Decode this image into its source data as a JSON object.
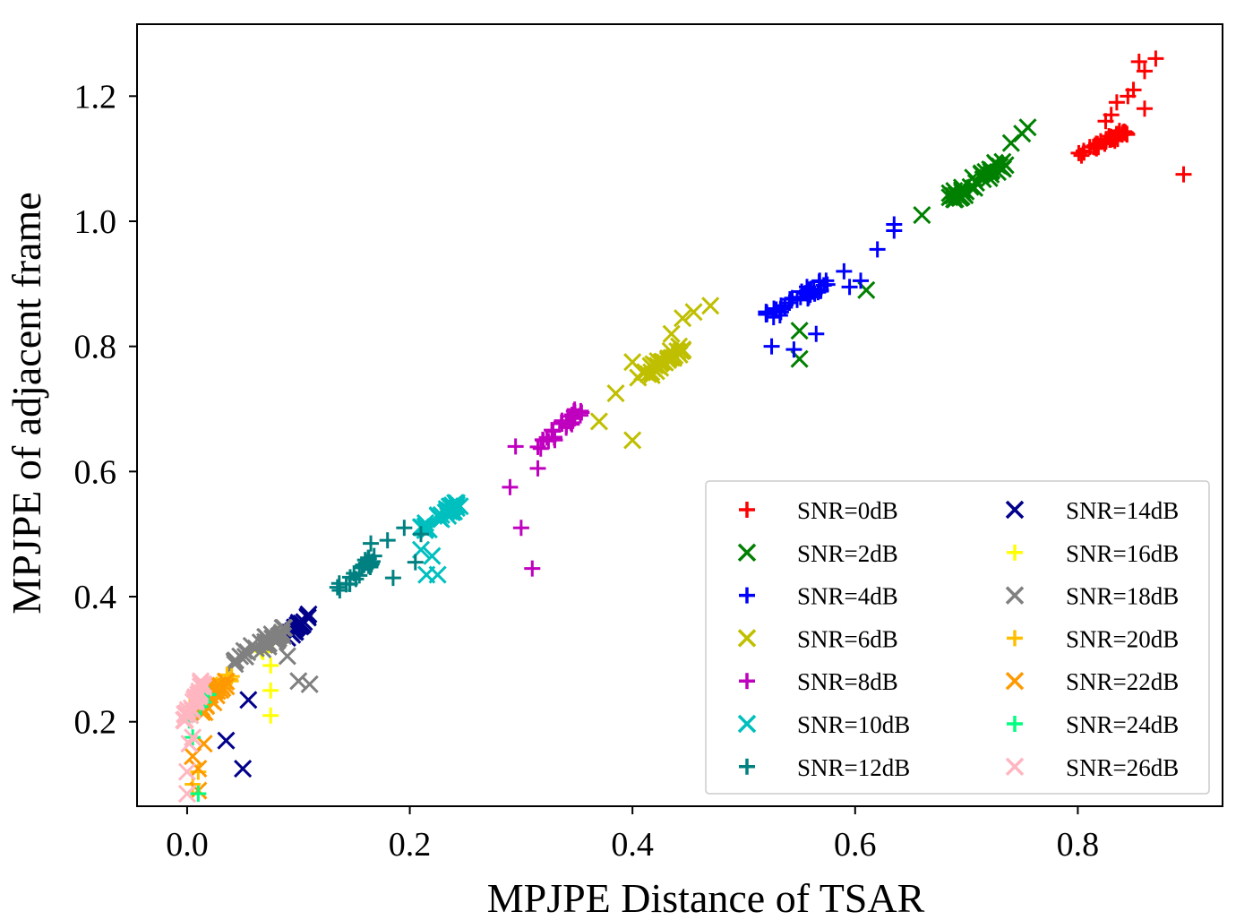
{
  "chart_data": {
    "type": "scatter",
    "title": "",
    "xlabel": "MPJPE Distance of  TSAR",
    "ylabel": "MPJPE of adjacent frame",
    "xlim": [
      -0.045,
      0.93
    ],
    "ylim": [
      0.065,
      1.315
    ],
    "xticks": [
      "0.0",
      "0.2",
      "0.4",
      "0.6",
      "0.8"
    ],
    "xtick_values": [
      0.0,
      0.2,
      0.4,
      0.6,
      0.8
    ],
    "yticks": [
      "0.2",
      "0.4",
      "0.6",
      "0.8",
      "1.0",
      "1.2"
    ],
    "ytick_values": [
      0.2,
      0.4,
      0.6,
      0.8,
      1.0,
      1.2
    ],
    "grid": false,
    "legend_position": "lower-right",
    "series": [
      {
        "name": "SNR=0dB",
        "marker": "plus",
        "color": "#ff0000",
        "cluster": {
          "x0": 0.8,
          "y0": 1.105,
          "x1": 0.845,
          "y1": 1.145,
          "n": 40
        },
        "points": [
          [
            0.895,
            1.075
          ],
          [
            0.855,
            1.255
          ],
          [
            0.86,
            1.24
          ],
          [
            0.87,
            1.26
          ],
          [
            0.85,
            1.21
          ],
          [
            0.845,
            1.2
          ],
          [
            0.86,
            1.18
          ],
          [
            0.83,
            1.17
          ],
          [
            0.835,
            1.19
          ],
          [
            0.825,
            1.16
          ]
        ]
      },
      {
        "name": "SNR=2dB",
        "marker": "x",
        "color": "#008000",
        "cluster": {
          "x0": 0.685,
          "y0": 1.035,
          "x1": 0.735,
          "y1": 1.095,
          "n": 40
        },
        "points": [
          [
            0.61,
            0.89
          ],
          [
            0.55,
            0.78
          ],
          [
            0.55,
            0.825
          ],
          [
            0.66,
            1.01
          ],
          [
            0.75,
            1.14
          ],
          [
            0.755,
            1.15
          ],
          [
            0.74,
            1.125
          ]
        ]
      },
      {
        "name": "SNR=4dB",
        "marker": "plus",
        "color": "#0000ff",
        "cluster": {
          "x0": 0.52,
          "y0": 0.845,
          "x1": 0.575,
          "y1": 0.905,
          "n": 38
        },
        "points": [
          [
            0.525,
            0.8
          ],
          [
            0.545,
            0.795
          ],
          [
            0.565,
            0.82
          ],
          [
            0.595,
            0.895
          ],
          [
            0.605,
            0.905
          ],
          [
            0.62,
            0.955
          ],
          [
            0.635,
            0.985
          ],
          [
            0.635,
            0.995
          ],
          [
            0.59,
            0.92
          ]
        ]
      },
      {
        "name": "SNR=6dB",
        "marker": "x",
        "color": "#bfbf00",
        "cluster": {
          "x0": 0.405,
          "y0": 0.745,
          "x1": 0.445,
          "y1": 0.8,
          "n": 32
        },
        "points": [
          [
            0.4,
            0.65
          ],
          [
            0.37,
            0.68
          ],
          [
            0.385,
            0.725
          ],
          [
            0.4,
            0.775
          ],
          [
            0.445,
            0.845
          ],
          [
            0.455,
            0.855
          ],
          [
            0.47,
            0.865
          ],
          [
            0.435,
            0.82
          ]
        ]
      },
      {
        "name": "SNR=8dB",
        "marker": "plus",
        "color": "#bf00bf",
        "cluster": {
          "x0": 0.315,
          "y0": 0.635,
          "x1": 0.355,
          "y1": 0.7,
          "n": 30
        },
        "points": [
          [
            0.31,
            0.445
          ],
          [
            0.3,
            0.51
          ],
          [
            0.29,
            0.575
          ],
          [
            0.295,
            0.64
          ],
          [
            0.315,
            0.605
          ]
        ]
      },
      {
        "name": "SNR=10dB",
        "marker": "x",
        "color": "#00bfbf",
        "cluster": {
          "x0": 0.21,
          "y0": 0.505,
          "x1": 0.245,
          "y1": 0.55,
          "n": 30
        },
        "points": [
          [
            0.215,
            0.435
          ],
          [
            0.225,
            0.435
          ],
          [
            0.21,
            0.475
          ],
          [
            0.22,
            0.465
          ]
        ]
      },
      {
        "name": "SNR=12dB",
        "marker": "plus",
        "color": "#008080",
        "cluster": {
          "x0": 0.135,
          "y0": 0.41,
          "x1": 0.17,
          "y1": 0.465,
          "n": 26
        },
        "points": [
          [
            0.185,
            0.43
          ],
          [
            0.205,
            0.455
          ],
          [
            0.195,
            0.51
          ],
          [
            0.18,
            0.49
          ],
          [
            0.165,
            0.485
          ],
          [
            0.21,
            0.5
          ]
        ]
      },
      {
        "name": "SNR=14dB",
        "marker": "x",
        "color": "#00008b",
        "cluster": {
          "x0": 0.09,
          "y0": 0.33,
          "x1": 0.11,
          "y1": 0.375,
          "n": 22
        },
        "points": [
          [
            0.05,
            0.125
          ],
          [
            0.035,
            0.17
          ],
          [
            0.055,
            0.235
          ]
        ]
      },
      {
        "name": "SNR=16dB",
        "marker": "plus",
        "color": "#ffff00",
        "cluster": {
          "x0": 0.065,
          "y0": 0.31,
          "x1": 0.085,
          "y1": 0.35,
          "n": 10
        },
        "points": [
          [
            0.075,
            0.21
          ],
          [
            0.075,
            0.25
          ],
          [
            0.075,
            0.29
          ],
          [
            0.08,
            0.34
          ]
        ]
      },
      {
        "name": "SNR=18dB",
        "marker": "x",
        "color": "#808080",
        "cluster": {
          "x0": 0.04,
          "y0": 0.29,
          "x1": 0.09,
          "y1": 0.35,
          "n": 34
        },
        "points": [
          [
            0.11,
            0.26
          ],
          [
            0.1,
            0.265
          ],
          [
            0.09,
            0.305
          ]
        ]
      },
      {
        "name": "SNR=20dB",
        "marker": "plus",
        "color": "#ffbf00",
        "cluster": {
          "x0": 0.005,
          "y0": 0.22,
          "x1": 0.04,
          "y1": 0.275,
          "n": 18
        },
        "points": [
          [
            0.005,
            0.1
          ],
          [
            0.01,
            0.12
          ]
        ]
      },
      {
        "name": "SNR=22dB",
        "marker": "x",
        "color": "#ff9900",
        "cluster": {
          "x0": 0.01,
          "y0": 0.21,
          "x1": 0.035,
          "y1": 0.265,
          "n": 22
        },
        "points": [
          [
            0.01,
            0.09
          ],
          [
            0.01,
            0.125
          ],
          [
            0.015,
            0.165
          ],
          [
            0.005,
            0.145
          ]
        ]
      },
      {
        "name": "SNR=24dB",
        "marker": "plus",
        "color": "#00ff80",
        "cluster": {
          "x0": 0.0,
          "y0": 0.2,
          "x1": 0.02,
          "y1": 0.25,
          "n": 10
        },
        "points": [
          [
            0.005,
            0.175
          ],
          [
            0.01,
            0.085
          ]
        ]
      },
      {
        "name": "SNR=26dB",
        "marker": "x",
        "color": "#ffb6c1",
        "cluster": {
          "x0": -0.003,
          "y0": 0.2,
          "x1": 0.015,
          "y1": 0.265,
          "n": 28
        },
        "points": [
          [
            0.0,
            0.085
          ],
          [
            0.0,
            0.12
          ],
          [
            0.002,
            0.165
          ],
          [
            0.005,
            0.175
          ]
        ]
      }
    ]
  }
}
